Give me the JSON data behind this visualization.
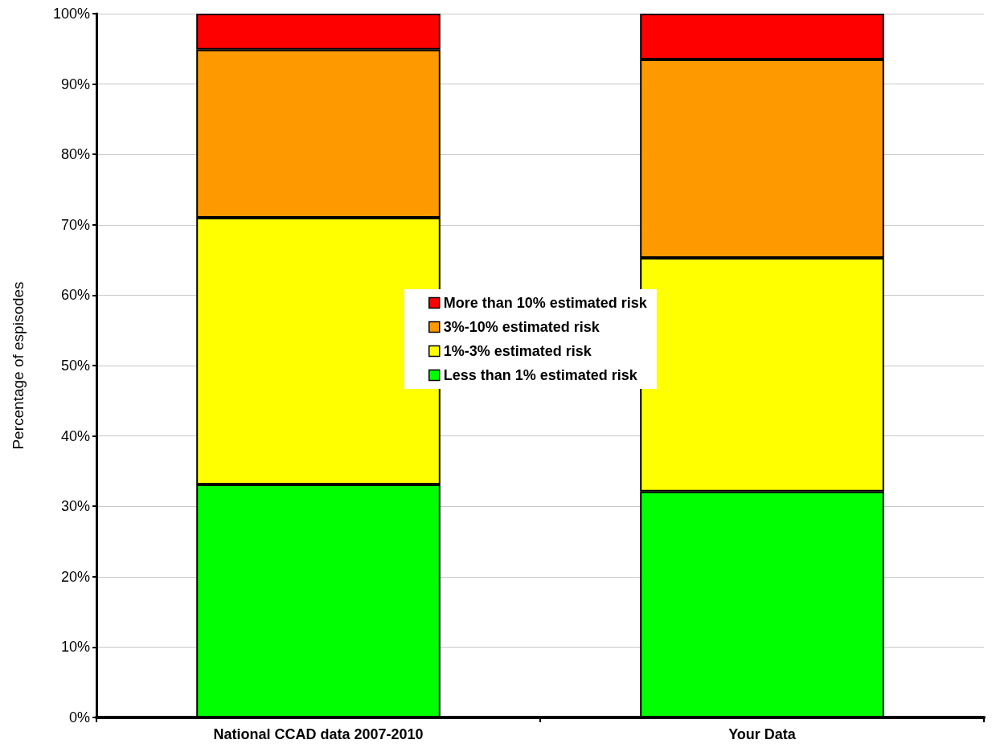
{
  "chart_data": {
    "type": "bar",
    "stacked": true,
    "ylabel": "Percentage of espisodes",
    "categories": [
      "National CCAD data 2007-2010",
      "Your Data"
    ],
    "series": [
      {
        "name": "Less than 1% estimated risk",
        "color": "#00ff00",
        "values": [
          33.1,
          32.1
        ]
      },
      {
        "name": "1%-3% estimated risk",
        "color": "#ffff00",
        "values": [
          37.9,
          33.2
        ]
      },
      {
        "name": "3%-10% estimated risk",
        "color": "#ff9900",
        "values": [
          23.9,
          28.2
        ]
      },
      {
        "name": "More than 10% estimated risk",
        "color": "#ff0000",
        "values": [
          5.1,
          6.5
        ]
      }
    ],
    "ylim": [
      0,
      100
    ],
    "yticks": [
      {
        "value": 0,
        "label": "0%"
      },
      {
        "value": 10,
        "label": "10%"
      },
      {
        "value": 20,
        "label": "20%"
      },
      {
        "value": 30,
        "label": "30%"
      },
      {
        "value": 40,
        "label": "40%"
      },
      {
        "value": 50,
        "label": "50%"
      },
      {
        "value": 60,
        "label": "60%"
      },
      {
        "value": 70,
        "label": "70%"
      },
      {
        "value": 80,
        "label": "80%"
      },
      {
        "value": 90,
        "label": "90%"
      },
      {
        "value": 100,
        "label": "100%"
      }
    ],
    "grid": "y",
    "legend": "center"
  }
}
